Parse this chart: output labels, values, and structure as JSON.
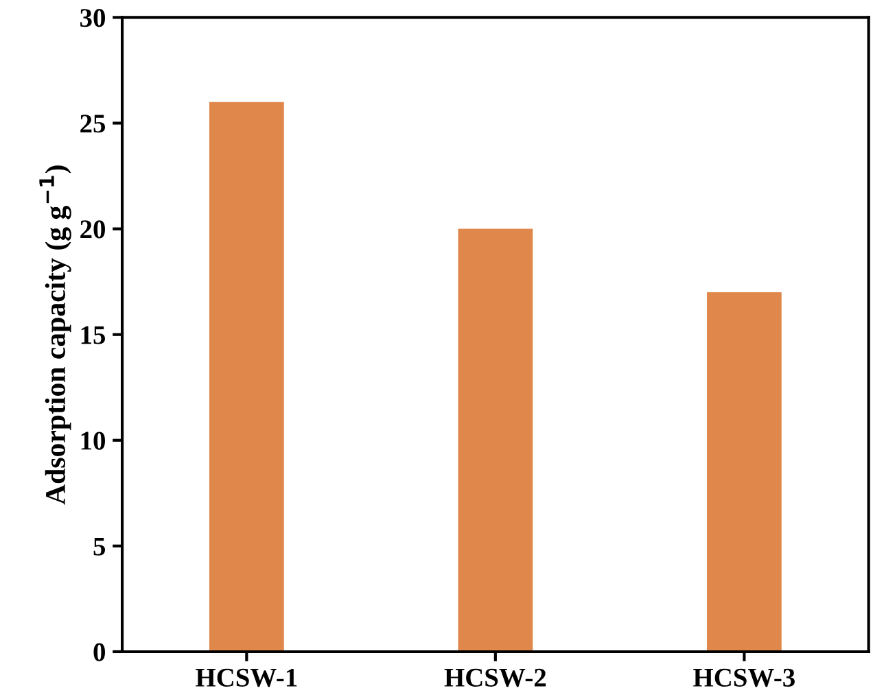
{
  "chart_data": {
    "type": "bar",
    "ylabel": "Adsorption capacity (g g$^{−1}$)",
    "categories": [
      "HCSW-1",
      "HCSW-2",
      "HCSW-3"
    ],
    "values": [
      26,
      20,
      17
    ],
    "color": "#e0884c",
    "ylim": [
      0,
      30
    ],
    "yticks": [
      0,
      5,
      10,
      15,
      20,
      25,
      30
    ],
    "grid": false,
    "legend": false
  }
}
